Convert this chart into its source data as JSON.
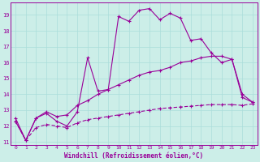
{
  "xlabel": "Windchill (Refroidissement éolien,°C)",
  "background_color": "#cceee8",
  "grid_color": "#aaddda",
  "line_color": "#990099",
  "xlim": [
    -0.5,
    23.5
  ],
  "ylim": [
    10.8,
    19.8
  ],
  "xticks": [
    0,
    1,
    2,
    3,
    4,
    5,
    6,
    7,
    8,
    9,
    10,
    11,
    12,
    13,
    14,
    15,
    16,
    17,
    18,
    19,
    20,
    21,
    22,
    23
  ],
  "yticks": [
    11,
    12,
    13,
    14,
    15,
    16,
    17,
    18,
    19
  ],
  "line1_x": [
    0,
    1,
    2,
    3,
    4,
    5,
    6,
    7,
    8,
    9,
    10,
    11,
    12,
    13,
    14,
    15,
    16,
    17,
    18,
    19,
    20,
    21,
    22,
    23
  ],
  "line1_y": [
    12.5,
    11.1,
    12.5,
    12.8,
    12.3,
    12.0,
    12.9,
    16.3,
    14.2,
    14.3,
    18.9,
    18.6,
    19.3,
    19.4,
    18.7,
    19.1,
    18.8,
    17.4,
    17.5,
    16.6,
    16.0,
    16.2,
    13.8,
    13.5
  ],
  "line2_x": [
    0,
    1,
    2,
    3,
    4,
    5,
    6,
    7,
    8,
    9,
    10,
    11,
    12,
    13,
    14,
    15,
    16,
    17,
    18,
    19,
    20,
    21,
    22,
    23
  ],
  "line2_y": [
    12.3,
    11.1,
    12.5,
    12.9,
    12.6,
    12.7,
    13.3,
    13.6,
    14.0,
    14.3,
    14.6,
    14.9,
    15.2,
    15.4,
    15.5,
    15.7,
    16.0,
    16.1,
    16.3,
    16.4,
    16.4,
    16.2,
    14.0,
    13.5
  ],
  "line3_x": [
    0,
    1,
    2,
    3,
    4,
    5,
    6,
    7,
    8,
    9,
    10,
    11,
    12,
    13,
    14,
    15,
    16,
    17,
    18,
    19,
    20,
    21,
    22,
    23
  ],
  "line3_y": [
    12.3,
    11.1,
    11.9,
    12.1,
    12.0,
    11.9,
    12.2,
    12.4,
    12.5,
    12.6,
    12.7,
    12.8,
    12.9,
    13.0,
    13.1,
    13.15,
    13.2,
    13.25,
    13.3,
    13.35,
    13.35,
    13.35,
    13.3,
    13.4
  ]
}
